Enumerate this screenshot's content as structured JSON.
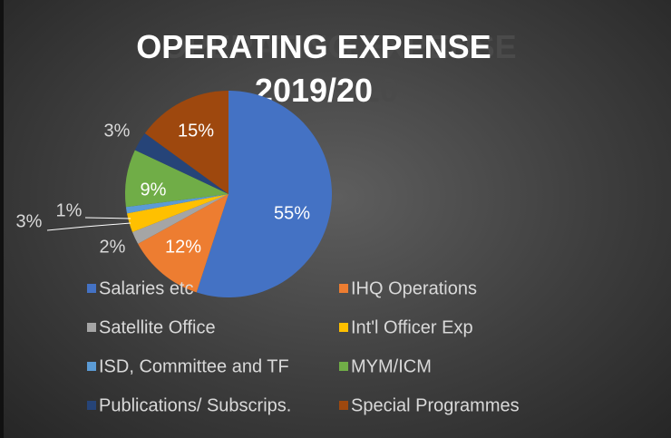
{
  "chart_data": {
    "type": "pie",
    "title": "OPERATING EXPENSE 2019/20",
    "categories": [
      "Salaries etc",
      "IHQ Operations",
      "Satellite Office",
      "Int'l Officer Exp",
      "ISD, Committee and TF",
      "MYM/ICM",
      "Publications/ Subscrips.",
      "Special Programmes"
    ],
    "values": [
      55,
      12,
      2,
      3,
      1,
      9,
      3,
      15
    ],
    "value_labels": [
      "55%",
      "12%",
      "2%",
      "3%",
      "1%",
      "9%",
      "3%",
      "15%"
    ],
    "colors": [
      "#4472c4",
      "#ed7d31",
      "#a5a5a5",
      "#ffc000",
      "#5b9bd5",
      "#70ad47",
      "#264478",
      "#9e480e"
    ],
    "legend": "bottom"
  }
}
